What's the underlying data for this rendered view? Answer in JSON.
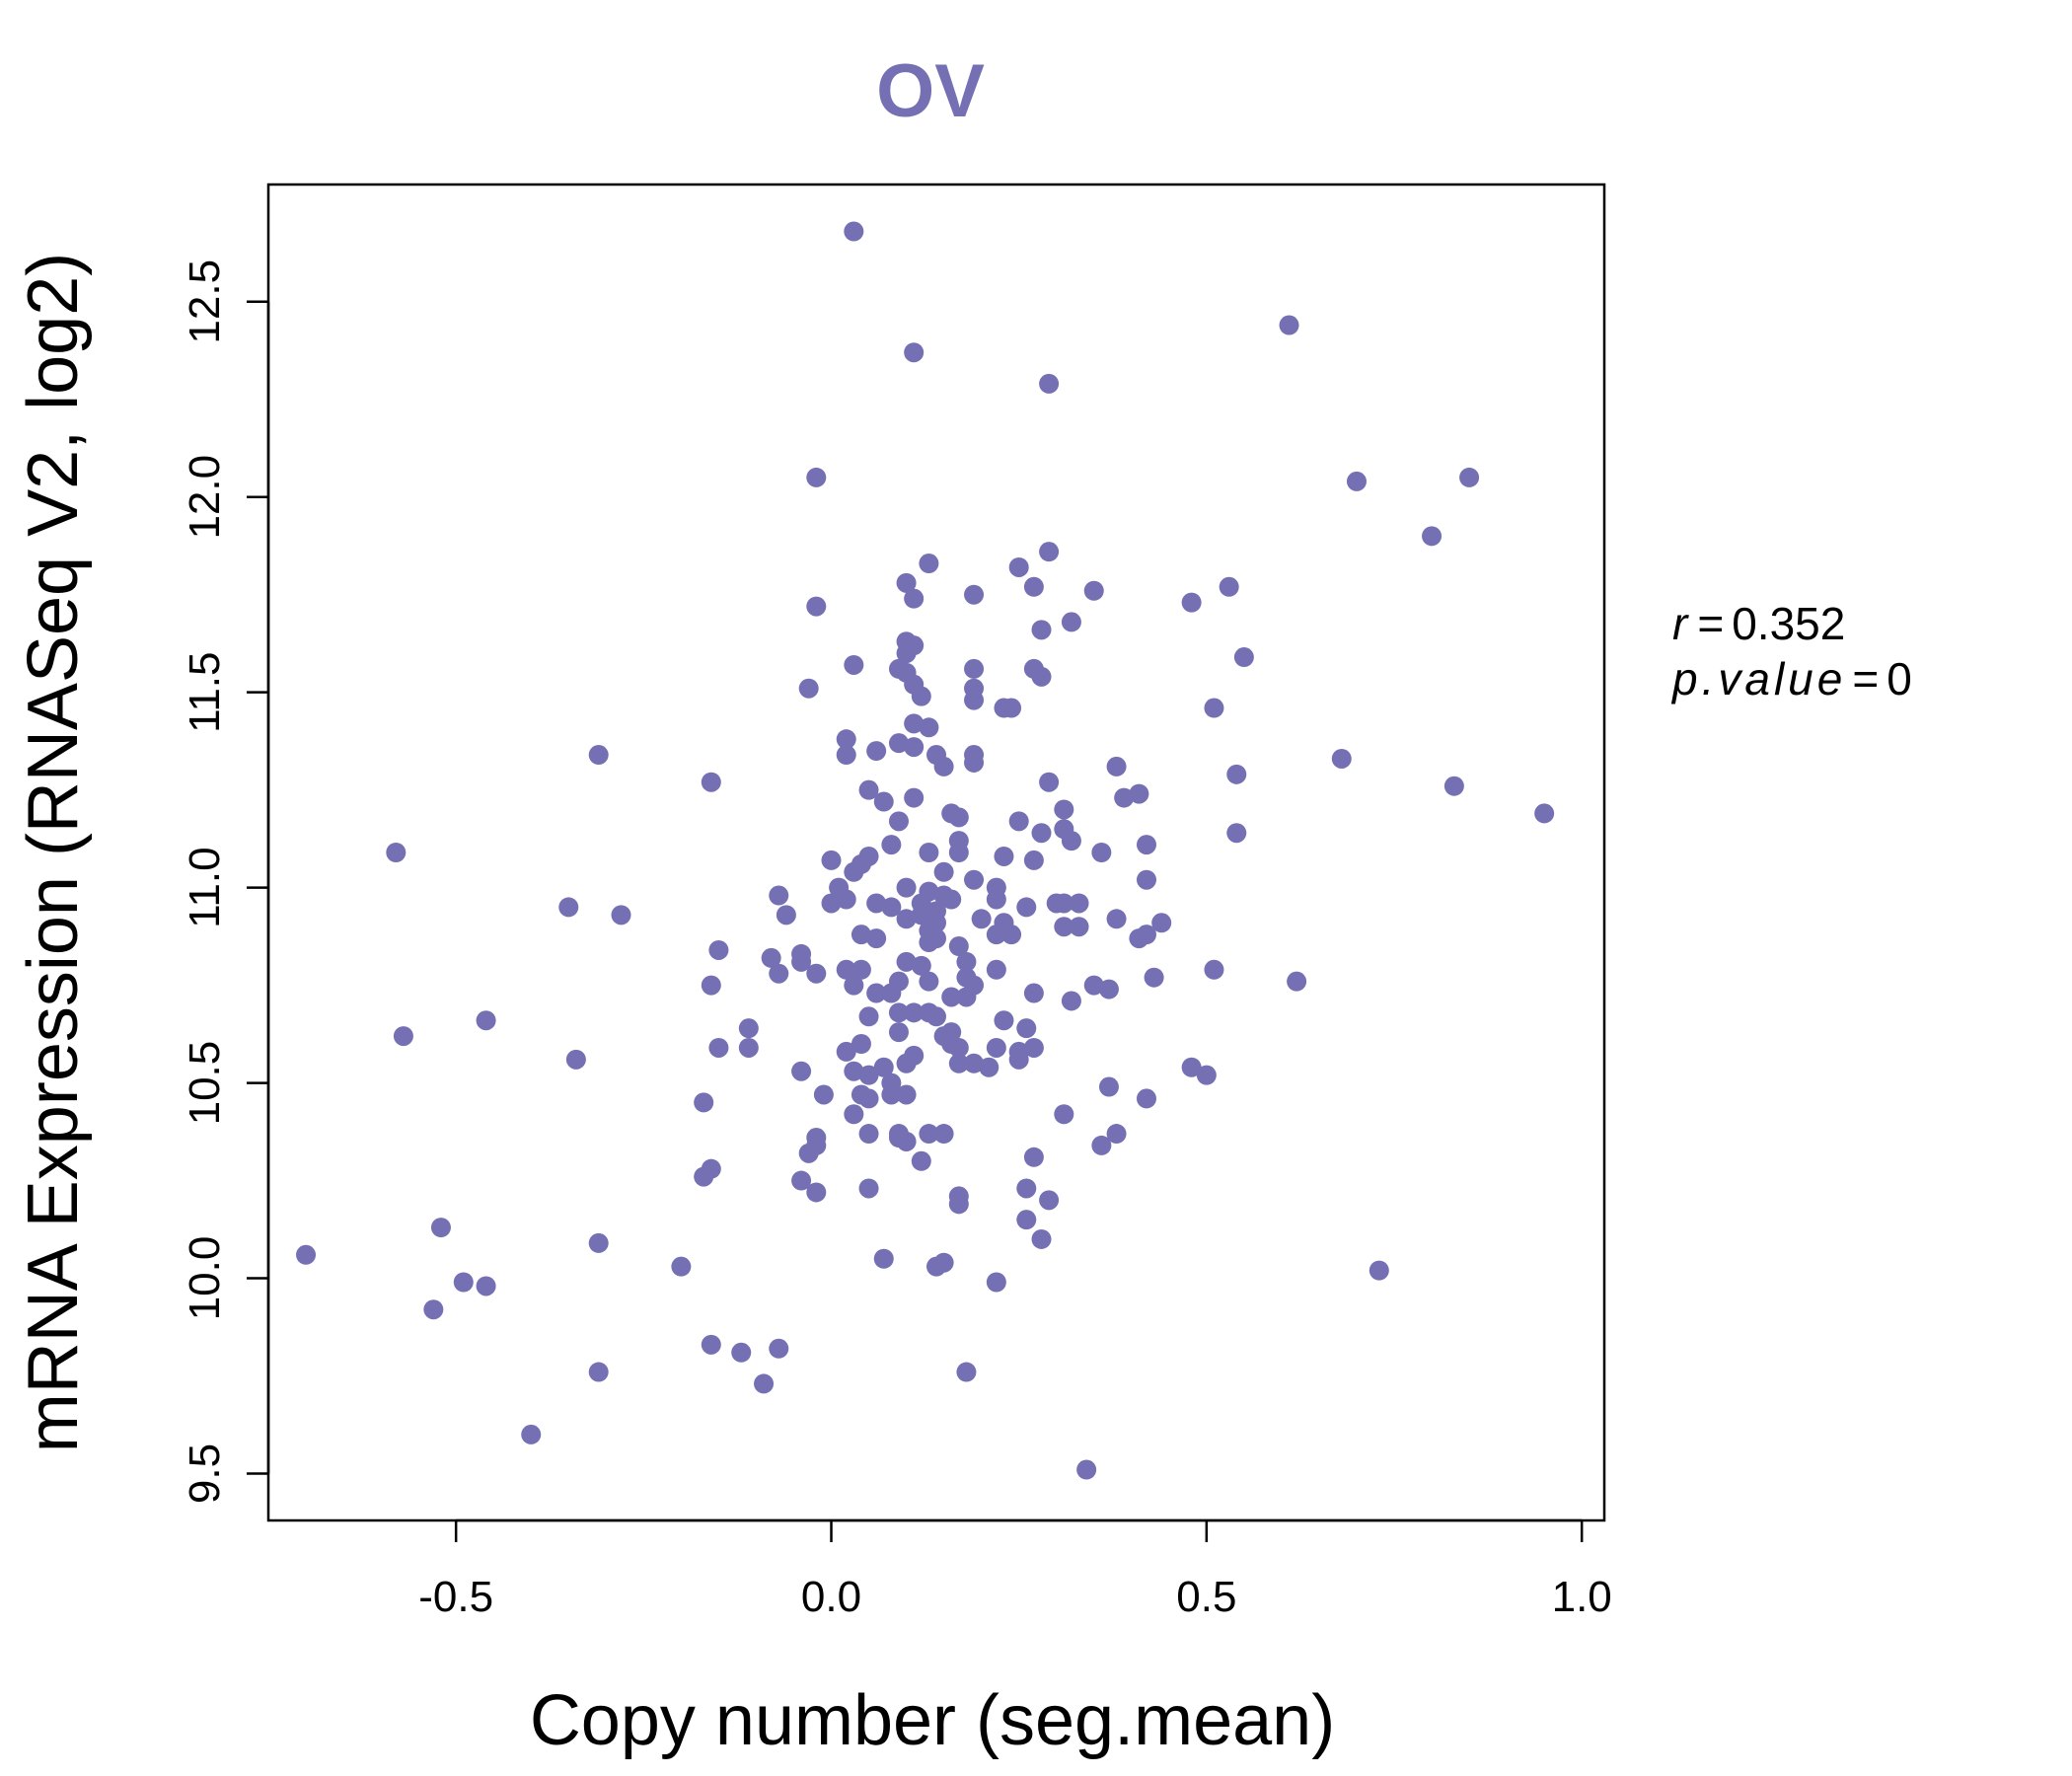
{
  "chart_data": {
    "type": "scatter",
    "title": "OV",
    "xlabel": "Copy number (seg.mean)",
    "ylabel": "mRNA Expression (RNASeq V2, log2)",
    "xlim": [
      -0.75,
      1.03
    ],
    "ylim": [
      9.38,
      12.8
    ],
    "xticks": [
      -0.5,
      0.0,
      0.5,
      1.0
    ],
    "xtick_labels": [
      "-0.5",
      "0.0",
      "0.5",
      "1.0"
    ],
    "yticks": [
      9.5,
      10.0,
      10.5,
      11.0,
      11.5,
      12.0,
      12.5
    ],
    "ytick_labels": [
      "9.5",
      "10.0",
      "10.5",
      "11.0",
      "11.5",
      "12.0",
      "12.5"
    ],
    "point_color": "#7570b3",
    "annotation": {
      "r_label": "r",
      "r_value": "0.352",
      "p_label": "p.value",
      "p_value": "0"
    },
    "points": [
      [
        0.03,
        12.68
      ],
      [
        0.11,
        12.37
      ],
      [
        0.29,
        12.29
      ],
      [
        0.61,
        12.44
      ],
      [
        -0.02,
        12.05
      ],
      [
        0.7,
        12.04
      ],
      [
        0.85,
        12.05
      ],
      [
        0.8,
        11.9
      ],
      [
        0.29,
        11.86
      ],
      [
        0.13,
        11.83
      ],
      [
        0.25,
        11.82
      ],
      [
        0.1,
        11.78
      ],
      [
        0.27,
        11.77
      ],
      [
        0.19,
        11.75
      ],
      [
        0.35,
        11.76
      ],
      [
        0.53,
        11.77
      ],
      [
        0.11,
        11.74
      ],
      [
        -0.02,
        11.72
      ],
      [
        0.48,
        11.73
      ],
      [
        0.32,
        11.68
      ],
      [
        0.28,
        11.66
      ],
      [
        0.1,
        11.63
      ],
      [
        0.11,
        11.62
      ],
      [
        0.1,
        11.6
      ],
      [
        0.55,
        11.59
      ],
      [
        0.03,
        11.57
      ],
      [
        0.09,
        11.56
      ],
      [
        0.19,
        11.56
      ],
      [
        0.27,
        11.56
      ],
      [
        0.28,
        11.54
      ],
      [
        0.1,
        11.55
      ],
      [
        0.11,
        11.52
      ],
      [
        -0.03,
        11.51
      ],
      [
        0.19,
        11.51
      ],
      [
        0.12,
        11.49
      ],
      [
        0.19,
        11.48
      ],
      [
        0.51,
        11.46
      ],
      [
        0.23,
        11.46
      ],
      [
        0.24,
        11.46
      ],
      [
        0.11,
        11.42
      ],
      [
        0.13,
        11.41
      ],
      [
        0.02,
        11.38
      ],
      [
        0.09,
        11.37
      ],
      [
        0.11,
        11.36
      ],
      [
        0.14,
        11.34
      ],
      [
        0.06,
        11.35
      ],
      [
        0.02,
        11.34
      ],
      [
        0.19,
        11.34
      ],
      [
        0.19,
        11.32
      ],
      [
        0.15,
        11.31
      ],
      [
        -0.31,
        11.34
      ],
      [
        0.38,
        11.31
      ],
      [
        0.68,
        11.33
      ],
      [
        0.54,
        11.29
      ],
      [
        -0.16,
        11.27
      ],
      [
        0.29,
        11.27
      ],
      [
        0.05,
        11.25
      ],
      [
        0.41,
        11.24
      ],
      [
        0.39,
        11.23
      ],
      [
        0.83,
        11.26
      ],
      [
        0.07,
        11.22
      ],
      [
        0.11,
        11.23
      ],
      [
        0.31,
        11.2
      ],
      [
        0.16,
        11.19
      ],
      [
        0.17,
        11.18
      ],
      [
        0.95,
        11.19
      ],
      [
        0.25,
        11.17
      ],
      [
        0.09,
        11.17
      ],
      [
        0.54,
        11.14
      ],
      [
        0.31,
        11.15
      ],
      [
        0.28,
        11.14
      ],
      [
        0.32,
        11.12
      ],
      [
        0.42,
        11.11
      ],
      [
        0.17,
        11.12
      ],
      [
        0.08,
        11.11
      ],
      [
        0.17,
        11.09
      ],
      [
        0.13,
        11.09
      ],
      [
        0.05,
        11.08
      ],
      [
        0.36,
        11.09
      ],
      [
        -0.58,
        11.09
      ],
      [
        0.0,
        11.07
      ],
      [
        0.04,
        11.06
      ],
      [
        0.23,
        11.08
      ],
      [
        0.27,
        11.07
      ],
      [
        0.03,
        11.04
      ],
      [
        0.15,
        11.04
      ],
      [
        0.19,
        11.02
      ],
      [
        0.42,
        11.02
      ],
      [
        0.1,
        11.0
      ],
      [
        0.01,
        11.0
      ],
      [
        0.02,
        10.97
      ],
      [
        0.22,
        11.0
      ],
      [
        0.13,
        10.99
      ],
      [
        0.15,
        10.98
      ],
      [
        0.16,
        10.97
      ],
      [
        -0.07,
        10.98
      ],
      [
        0.0,
        10.96
      ],
      [
        0.06,
        10.96
      ],
      [
        0.22,
        10.97
      ],
      [
        0.26,
        10.95
      ],
      [
        0.3,
        10.96
      ],
      [
        0.31,
        10.96
      ],
      [
        0.33,
        10.96
      ],
      [
        0.08,
        10.95
      ],
      [
        0.12,
        10.96
      ],
      [
        0.14,
        10.94
      ],
      [
        0.12,
        10.93
      ],
      [
        0.2,
        10.92
      ],
      [
        0.38,
        10.92
      ],
      [
        -0.35,
        10.95
      ],
      [
        -0.28,
        10.93
      ],
      [
        -0.06,
        10.93
      ],
      [
        0.1,
        10.92
      ],
      [
        0.14,
        10.91
      ],
      [
        0.23,
        10.91
      ],
      [
        0.31,
        10.9
      ],
      [
        0.33,
        10.9
      ],
      [
        0.44,
        10.91
      ],
      [
        0.13,
        10.89
      ],
      [
        0.22,
        10.88
      ],
      [
        0.42,
        10.88
      ],
      [
        0.24,
        10.88
      ],
      [
        0.41,
        10.87
      ],
      [
        0.06,
        10.87
      ],
      [
        0.04,
        10.88
      ],
      [
        0.14,
        10.87
      ],
      [
        0.13,
        10.86
      ],
      [
        0.17,
        10.85
      ],
      [
        -0.15,
        10.84
      ],
      [
        -0.08,
        10.82
      ],
      [
        -0.04,
        10.83
      ],
      [
        -0.04,
        10.81
      ],
      [
        0.1,
        10.81
      ],
      [
        0.18,
        10.81
      ],
      [
        0.12,
        10.8
      ],
      [
        0.02,
        10.79
      ],
      [
        0.04,
        10.79
      ],
      [
        0.51,
        10.79
      ],
      [
        -0.07,
        10.78
      ],
      [
        -0.02,
        10.78
      ],
      [
        0.18,
        10.77
      ],
      [
        0.22,
        10.79
      ],
      [
        0.43,
        10.77
      ],
      [
        0.09,
        10.76
      ],
      [
        0.13,
        10.76
      ],
      [
        0.03,
        10.75
      ],
      [
        0.19,
        10.75
      ],
      [
        0.35,
        10.75
      ],
      [
        0.37,
        10.74
      ],
      [
        -0.16,
        10.75
      ],
      [
        0.62,
        10.76
      ],
      [
        0.06,
        10.73
      ],
      [
        0.08,
        10.73
      ],
      [
        0.16,
        10.72
      ],
      [
        0.18,
        10.72
      ],
      [
        0.27,
        10.73
      ],
      [
        0.32,
        10.71
      ],
      [
        0.09,
        10.68
      ],
      [
        0.11,
        10.68
      ],
      [
        0.14,
        10.67
      ],
      [
        0.05,
        10.67
      ],
      [
        0.13,
        10.68
      ],
      [
        0.23,
        10.66
      ],
      [
        -0.46,
        10.66
      ],
      [
        0.09,
        10.63
      ],
      [
        0.16,
        10.63
      ],
      [
        0.15,
        10.62
      ],
      [
        0.26,
        10.64
      ],
      [
        -0.11,
        10.64
      ],
      [
        0.04,
        10.6
      ],
      [
        0.16,
        10.6
      ],
      [
        0.17,
        10.59
      ],
      [
        0.22,
        10.59
      ],
      [
        0.25,
        10.58
      ],
      [
        0.27,
        10.59
      ],
      [
        -0.15,
        10.59
      ],
      [
        -0.11,
        10.59
      ],
      [
        -0.57,
        10.62
      ],
      [
        0.02,
        10.58
      ],
      [
        0.11,
        10.57
      ],
      [
        0.1,
        10.55
      ],
      [
        0.17,
        10.55
      ],
      [
        0.19,
        10.55
      ],
      [
        0.25,
        10.56
      ],
      [
        0.03,
        10.53
      ],
      [
        0.07,
        10.54
      ],
      [
        0.21,
        10.54
      ],
      [
        -0.04,
        10.53
      ],
      [
        0.05,
        10.52
      ],
      [
        0.08,
        10.5
      ],
      [
        0.48,
        10.54
      ],
      [
        0.5,
        10.52
      ],
      [
        0.37,
        10.49
      ],
      [
        -0.34,
        10.56
      ],
      [
        -0.01,
        10.47
      ],
      [
        0.04,
        10.47
      ],
      [
        0.05,
        10.46
      ],
      [
        0.08,
        10.47
      ],
      [
        0.1,
        10.47
      ],
      [
        0.42,
        10.46
      ],
      [
        -0.17,
        10.45
      ],
      [
        0.03,
        10.42
      ],
      [
        0.31,
        10.42
      ],
      [
        0.09,
        10.37
      ],
      [
        0.13,
        10.37
      ],
      [
        0.15,
        10.37
      ],
      [
        -0.02,
        10.36
      ],
      [
        -0.02,
        10.34
      ],
      [
        0.05,
        10.37
      ],
      [
        0.09,
        10.36
      ],
      [
        0.1,
        10.35
      ],
      [
        0.38,
        10.37
      ],
      [
        0.36,
        10.34
      ],
      [
        -0.03,
        10.32
      ],
      [
        0.12,
        10.3
      ],
      [
        0.27,
        10.31
      ],
      [
        -0.16,
        10.28
      ],
      [
        -0.17,
        10.26
      ],
      [
        -0.04,
        10.25
      ],
      [
        0.05,
        10.23
      ],
      [
        -0.02,
        10.22
      ],
      [
        0.26,
        10.23
      ],
      [
        0.17,
        10.21
      ],
      [
        0.29,
        10.2
      ],
      [
        0.17,
        10.19
      ],
      [
        0.26,
        10.15
      ],
      [
        0.28,
        10.1
      ],
      [
        -0.52,
        10.13
      ],
      [
        -0.31,
        10.09
      ],
      [
        0.07,
        10.05
      ],
      [
        0.15,
        10.04
      ],
      [
        0.14,
        10.03
      ],
      [
        -0.2,
        10.03
      ],
      [
        0.73,
        10.02
      ],
      [
        -0.7,
        10.06
      ],
      [
        -0.49,
        9.99
      ],
      [
        -0.46,
        9.98
      ],
      [
        0.22,
        9.99
      ],
      [
        -0.53,
        9.92
      ],
      [
        -0.16,
        9.83
      ],
      [
        -0.12,
        9.81
      ],
      [
        -0.07,
        9.82
      ],
      [
        -0.31,
        9.76
      ],
      [
        0.18,
        9.76
      ],
      [
        -0.09,
        9.73
      ],
      [
        -0.4,
        9.6
      ],
      [
        0.34,
        9.51
      ]
    ]
  }
}
